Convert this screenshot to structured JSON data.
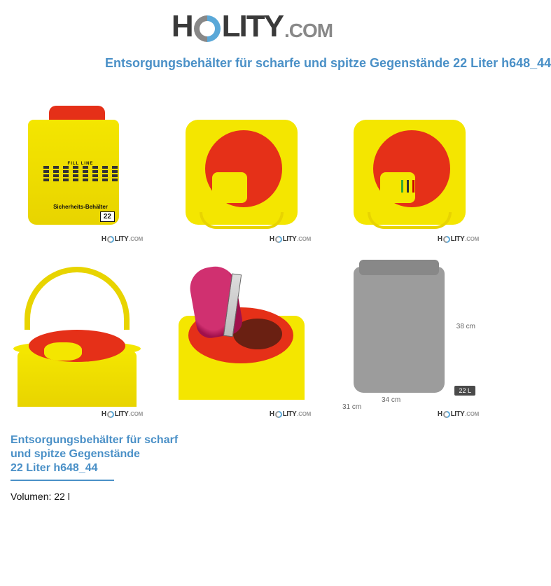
{
  "logo": {
    "left": "H",
    "right": "LITY",
    "suffix": ".COM"
  },
  "page_title": "Entsorgungsbehälter für scharfe und spitze Gegenstände 22 Liter h648_44",
  "watermark": {
    "left": "H",
    "right": "LITY",
    "suffix": ".COM"
  },
  "cells": {
    "c1": {
      "label_title": "Sicherheits-Behälter",
      "badge": "22",
      "fill_line": "FILL LINE"
    },
    "c6": {
      "dim_h": "38 cm",
      "dim_w1": "34 cm",
      "dim_w2": "31 cm",
      "vol_badge": "22 L"
    }
  },
  "detail": {
    "line1": "Entsorgungsbehälter für scharf",
    "line2": "und spitze Gegenstände",
    "line3": "22 Liter h648_44",
    "spec": "Volumen: 22 l"
  },
  "colors": {
    "brand_blue": "#4a90c7",
    "product_yellow": "#f4e600",
    "product_yellow_dark": "#e8d400",
    "lid_red": "#e53018",
    "silhouette_grey": "#9c9c9c",
    "text_dark": "#3a3a3a",
    "text_grey": "#888888"
  }
}
